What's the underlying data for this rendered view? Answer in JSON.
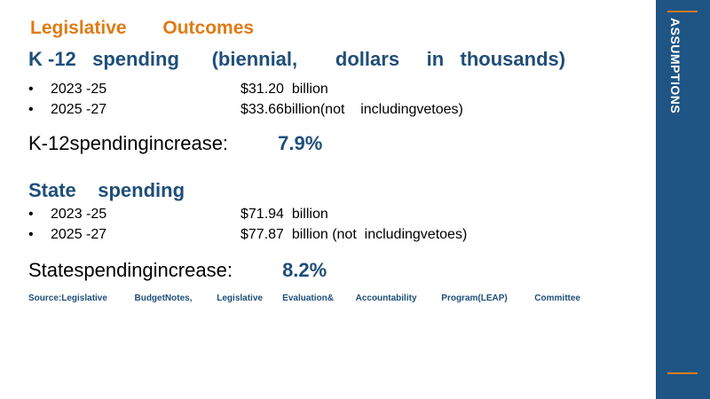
{
  "kicker": "Legislative       Outcomes",
  "k12": {
    "heading": "K -12   spending      (biennial,       dollars     in   thousands)",
    "rows": [
      {
        "period": "2023 -25",
        "amount": "$31.20  billion"
      },
      {
        "period": "2025 -27",
        "amount": "$33.66billion(not    includingvetoes)"
      }
    ],
    "summary_label": "K-12spendingincrease:",
    "summary_value": "7.9%"
  },
  "state": {
    "heading": "State    spending",
    "rows": [
      {
        "period": "2023 -25",
        "amount": "$71.94  billion"
      },
      {
        "period": "2025 -27",
        "amount": "$77.87  billion (not  includingvetoes)"
      }
    ],
    "summary_label": "Statespendingincrease:",
    "summary_value": "8.2%"
  },
  "source": "Source:Legislative           BudgetNotes,          Legislative        Evaluation&         Accountability          Program(LEAP)           Committee",
  "sidebar": {
    "label": "ASSUMPTIONS",
    "accent_color": "#e07b15",
    "background_color": "#1e5584"
  },
  "bullet_glyph": "•"
}
